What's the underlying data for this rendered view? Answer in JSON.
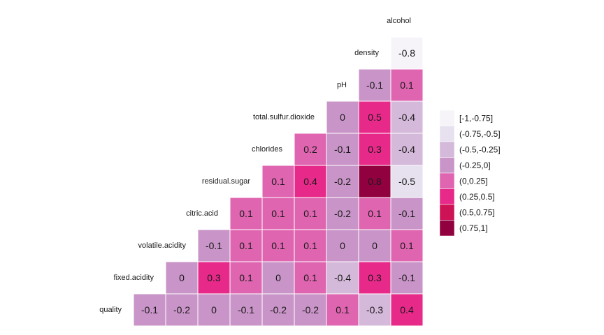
{
  "chart_data": {
    "type": "heatmap",
    "variables": [
      "quality",
      "fixed.acidity",
      "volatile.acidity",
      "citric.acid",
      "residual.sugar",
      "chlorides",
      "total.sulfur.dioxide",
      "pH",
      "density",
      "alcohol"
    ],
    "matrix": [
      [
        -0.1,
        -0.2,
        0,
        -0.1,
        -0.2,
        -0.2,
        0.1,
        -0.3,
        0.4
      ],
      [
        0,
        0.3,
        0.1,
        0,
        0.1,
        -0.4,
        0.3,
        -0.1
      ],
      [
        -0.1,
        0.1,
        0.1,
        0.1,
        0,
        0,
        0.1
      ],
      [
        0.1,
        0.1,
        0.1,
        -0.2,
        0.1,
        -0.1
      ],
      [
        0.1,
        0.4,
        -0.2,
        0.8,
        -0.5
      ],
      [
        0.2,
        -0.1,
        0.3,
        -0.4
      ],
      [
        0,
        0.5,
        -0.4
      ],
      [
        -0.1,
        0.1
      ],
      [
        -0.8
      ]
    ],
    "legend": {
      "placement": "right",
      "bins": [
        {
          "label": "[-1,-0.75]",
          "min": -1,
          "max": -0.75,
          "color": "#f7f4f9"
        },
        {
          "label": "(-0.75,-0.5]",
          "min": -0.75,
          "max": -0.5,
          "color": "#e7e1ef"
        },
        {
          "label": "(-0.5,-0.25]",
          "min": -0.5,
          "max": -0.25,
          "color": "#d4b9da"
        },
        {
          "label": "(-0.25,0]",
          "min": -0.25,
          "max": 0,
          "color": "#c994c7"
        },
        {
          "label": "(0,0.25]",
          "min": 0,
          "max": 0.25,
          "color": "#df65b0"
        },
        {
          "label": "(0.25,0.5]",
          "min": 0.25,
          "max": 0.5,
          "color": "#e7298a"
        },
        {
          "label": "(0.5,0.75]",
          "min": 0.5,
          "max": 0.75,
          "color": "#ce1256"
        },
        {
          "label": "(0.75,1]",
          "min": 0.75,
          "max": 1,
          "color": "#91003f"
        }
      ]
    }
  }
}
